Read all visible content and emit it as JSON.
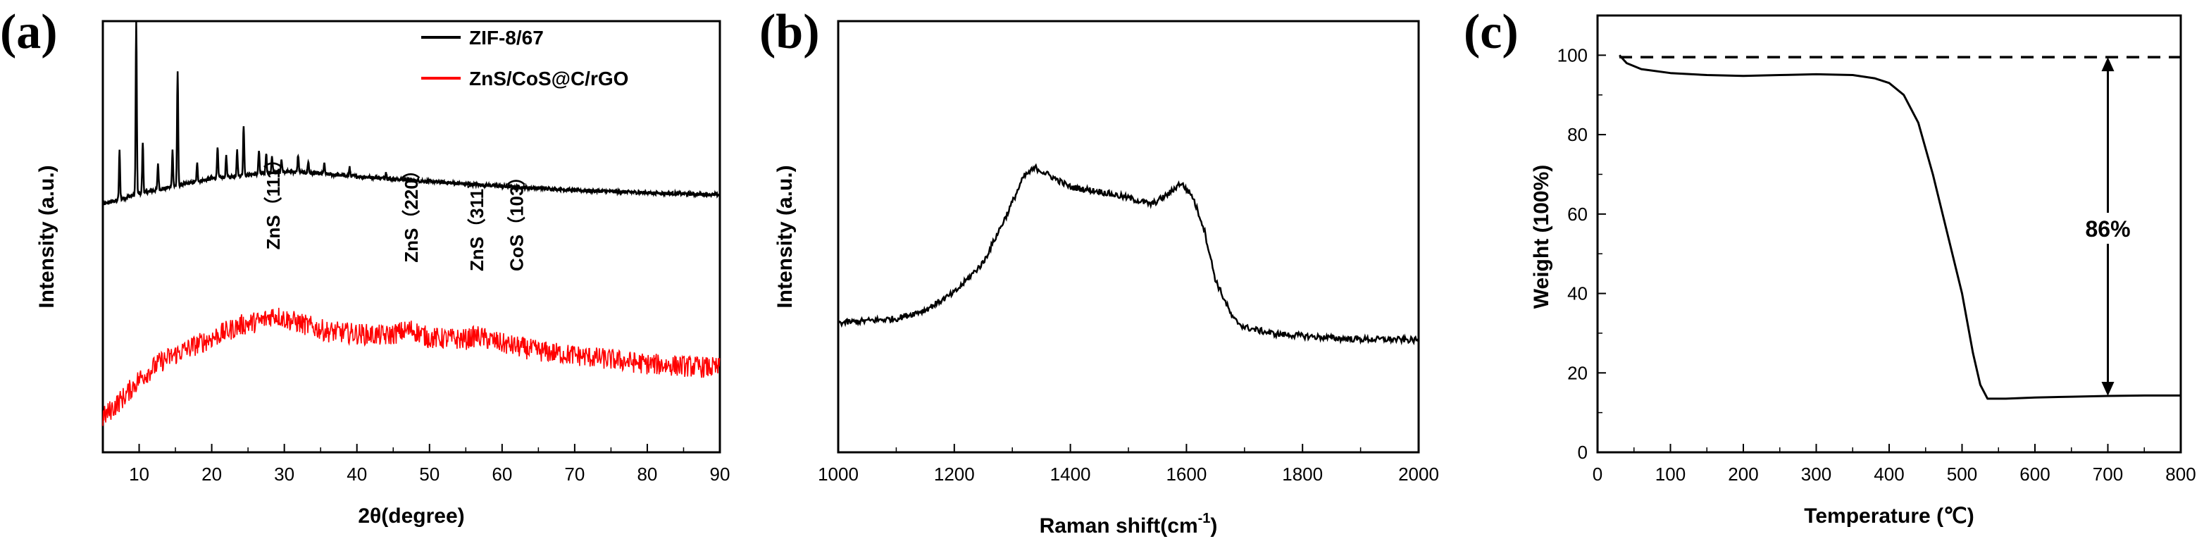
{
  "chart_data": [
    {
      "panel": "(a)",
      "type": "line",
      "xlabel": "2θ(degree)",
      "ylabel": "Intensity (a.u.)",
      "xlim": [
        5,
        90
      ],
      "ylim": [
        0,
        1
      ],
      "x_ticks": [
        10,
        20,
        30,
        40,
        50,
        60,
        70,
        80,
        90
      ],
      "y_ticks_shown": false,
      "legend": "top-right",
      "series": [
        {
          "name": "ZIF-8/67",
          "color": "#000000",
          "baseline": [
            [
              5,
              0.575
            ],
            [
              10,
              0.6
            ],
            [
              20,
              0.635
            ],
            [
              30,
              0.652
            ],
            [
              40,
              0.64
            ],
            [
              50,
              0.628
            ],
            [
              60,
              0.617
            ],
            [
              70,
              0.608
            ],
            [
              80,
              0.602
            ],
            [
              90,
              0.597
            ]
          ],
          "peaks": [
            [
              7.3,
              0.7
            ],
            [
              9.6,
              1.0
            ],
            [
              10.5,
              0.72
            ],
            [
              12.6,
              0.67
            ],
            [
              14.6,
              0.7
            ],
            [
              15.3,
              0.88
            ],
            [
              18.0,
              0.67
            ],
            [
              20.8,
              0.71
            ],
            [
              22.0,
              0.69
            ],
            [
              23.5,
              0.7
            ],
            [
              24.4,
              0.76
            ],
            [
              26.5,
              0.7
            ],
            [
              27.5,
              0.695
            ],
            [
              28.3,
              0.685
            ],
            [
              29.6,
              0.68
            ],
            [
              31.9,
              0.69
            ],
            [
              33.3,
              0.675
            ],
            [
              35.5,
              0.67
            ],
            [
              39.0,
              0.66
            ],
            [
              44.0,
              0.65
            ]
          ]
        },
        {
          "name": "ZnS/CoS@C/rGO",
          "color": "#ff0000",
          "profile": [
            [
              5,
              0.08
            ],
            [
              8,
              0.13
            ],
            [
              10,
              0.17
            ],
            [
              13,
              0.21
            ],
            [
              16,
              0.235
            ],
            [
              20,
              0.265
            ],
            [
              24,
              0.295
            ],
            [
              27,
              0.305
            ],
            [
              28.5,
              0.32
            ],
            [
              30,
              0.31
            ],
            [
              33,
              0.295
            ],
            [
              36,
              0.28
            ],
            [
              40,
              0.275
            ],
            [
              44,
              0.27
            ],
            [
              47.5,
              0.285
            ],
            [
              50,
              0.265
            ],
            [
              55,
              0.262
            ],
            [
              56.5,
              0.27
            ],
            [
              60,
              0.252
            ],
            [
              65,
              0.235
            ],
            [
              70,
              0.225
            ],
            [
              75,
              0.215
            ],
            [
              80,
              0.205
            ],
            [
              85,
              0.2
            ],
            [
              90,
              0.195
            ]
          ]
        }
      ],
      "annotations": [
        {
          "text": "ZnS（111）",
          "x": 28.5,
          "y": 0.47
        },
        {
          "text": "ZnS（220）",
          "x": 47.5,
          "y": 0.44
        },
        {
          "text": "ZnS（311）",
          "x": 56.5,
          "y": 0.42
        },
        {
          "text": "CoS（103）",
          "x": 62,
          "y": 0.42
        }
      ]
    },
    {
      "panel": "(b)",
      "type": "line",
      "xlabel": "Raman shift(cm",
      "xlabel_sup": "-1",
      "xlabel_end": ")",
      "ylabel": "Intensity (a.u.)",
      "xlim": [
        1000,
        2000
      ],
      "ylim": [
        0,
        1
      ],
      "x_ticks": [
        1000,
        1200,
        1400,
        1600,
        1800,
        2000
      ],
      "y_ticks_shown": false,
      "series": [
        {
          "name": "",
          "color": "#000000",
          "profile": [
            [
              1000,
              0.3
            ],
            [
              1050,
              0.305
            ],
            [
              1100,
              0.31
            ],
            [
              1150,
              0.33
            ],
            [
              1200,
              0.37
            ],
            [
              1250,
              0.44
            ],
            [
              1290,
              0.55
            ],
            [
              1320,
              0.64
            ],
            [
              1340,
              0.66
            ],
            [
              1360,
              0.645
            ],
            [
              1400,
              0.615
            ],
            [
              1450,
              0.605
            ],
            [
              1500,
              0.59
            ],
            [
              1540,
              0.575
            ],
            [
              1570,
              0.6
            ],
            [
              1590,
              0.625
            ],
            [
              1610,
              0.595
            ],
            [
              1630,
              0.52
            ],
            [
              1650,
              0.4
            ],
            [
              1680,
              0.31
            ],
            [
              1700,
              0.29
            ],
            [
              1750,
              0.275
            ],
            [
              1800,
              0.27
            ],
            [
              1850,
              0.265
            ],
            [
              1900,
              0.262
            ],
            [
              1950,
              0.262
            ],
            [
              2000,
              0.26
            ]
          ]
        }
      ]
    },
    {
      "panel": "(c)",
      "type": "line",
      "xlabel": "Temperature (℃)",
      "ylabel": "Weight (100%)",
      "xlim": [
        0,
        800
      ],
      "ylim": [
        0,
        110
      ],
      "x_ticks": [
        0,
        100,
        200,
        300,
        400,
        500,
        600,
        700,
        800
      ],
      "y_ticks": [
        0,
        20,
        40,
        60,
        80,
        100
      ],
      "series": [
        {
          "name": "",
          "color": "#000000",
          "profile": [
            [
              30,
              100
            ],
            [
              40,
              98
            ],
            [
              60,
              96.5
            ],
            [
              100,
              95.5
            ],
            [
              150,
              95
            ],
            [
              200,
              94.8
            ],
            [
              250,
              95
            ],
            [
              300,
              95.2
            ],
            [
              350,
              95
            ],
            [
              380,
              94.2
            ],
            [
              400,
              93
            ],
            [
              420,
              90
            ],
            [
              440,
              83
            ],
            [
              460,
              70
            ],
            [
              480,
              55
            ],
            [
              500,
              40
            ],
            [
              515,
              25
            ],
            [
              525,
              17
            ],
            [
              535,
              13.5
            ],
            [
              560,
              13.5
            ],
            [
              600,
              13.8
            ],
            [
              650,
              14
            ],
            [
              700,
              14.2
            ],
            [
              750,
              14.3
            ],
            [
              800,
              14.3
            ]
          ]
        }
      ],
      "reference_line": {
        "y": 99.5,
        "x_from": 30,
        "x_to": 800,
        "style": "dashed"
      },
      "arrow": {
        "x": 700,
        "y_from": 99.5,
        "y_to": 14.2
      },
      "annotation": {
        "text": "86%",
        "x": 700,
        "y": 55
      }
    }
  ]
}
